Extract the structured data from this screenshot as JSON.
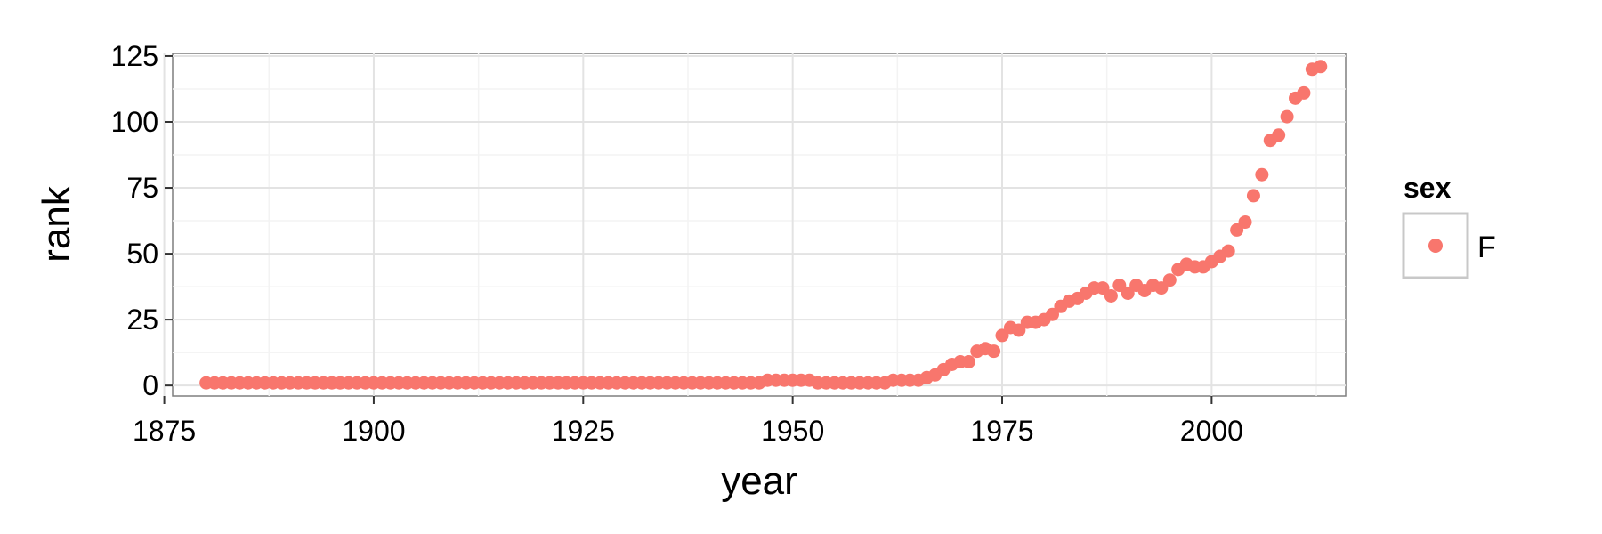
{
  "chart_data": {
    "type": "scatter",
    "xlabel": "year",
    "ylabel": "rank",
    "xlim": [
      1876,
      2016
    ],
    "ylim": [
      -4,
      126
    ],
    "x_ticks": [
      1875,
      1900,
      1925,
      1950,
      1975,
      2000
    ],
    "y_ticks": [
      0,
      25,
      50,
      75,
      100,
      125
    ],
    "x_tick_labels": [
      "1875",
      "1900",
      "1925",
      "1950",
      "1975",
      "2000"
    ],
    "y_tick_labels": [
      "0",
      "25",
      "50",
      "75",
      "100",
      "125"
    ],
    "grid": true,
    "background": "#ebebeb",
    "legend": {
      "title": "sex",
      "position": "right",
      "entries": [
        {
          "label": "F",
          "color": "#f8766d"
        }
      ]
    },
    "series": [
      {
        "name": "F",
        "color": "#f8766d",
        "points": [
          [
            1880,
            1
          ],
          [
            1881,
            1
          ],
          [
            1882,
            1
          ],
          [
            1883,
            1
          ],
          [
            1884,
            1
          ],
          [
            1885,
            1
          ],
          [
            1886,
            1
          ],
          [
            1887,
            1
          ],
          [
            1888,
            1
          ],
          [
            1889,
            1
          ],
          [
            1890,
            1
          ],
          [
            1891,
            1
          ],
          [
            1892,
            1
          ],
          [
            1893,
            1
          ],
          [
            1894,
            1
          ],
          [
            1895,
            1
          ],
          [
            1896,
            1
          ],
          [
            1897,
            1
          ],
          [
            1898,
            1
          ],
          [
            1899,
            1
          ],
          [
            1900,
            1
          ],
          [
            1901,
            1
          ],
          [
            1902,
            1
          ],
          [
            1903,
            1
          ],
          [
            1904,
            1
          ],
          [
            1905,
            1
          ],
          [
            1906,
            1
          ],
          [
            1907,
            1
          ],
          [
            1908,
            1
          ],
          [
            1909,
            1
          ],
          [
            1910,
            1
          ],
          [
            1911,
            1
          ],
          [
            1912,
            1
          ],
          [
            1913,
            1
          ],
          [
            1914,
            1
          ],
          [
            1915,
            1
          ],
          [
            1916,
            1
          ],
          [
            1917,
            1
          ],
          [
            1918,
            1
          ],
          [
            1919,
            1
          ],
          [
            1920,
            1
          ],
          [
            1921,
            1
          ],
          [
            1922,
            1
          ],
          [
            1923,
            1
          ],
          [
            1924,
            1
          ],
          [
            1925,
            1
          ],
          [
            1926,
            1
          ],
          [
            1927,
            1
          ],
          [
            1928,
            1
          ],
          [
            1929,
            1
          ],
          [
            1930,
            1
          ],
          [
            1931,
            1
          ],
          [
            1932,
            1
          ],
          [
            1933,
            1
          ],
          [
            1934,
            1
          ],
          [
            1935,
            1
          ],
          [
            1936,
            1
          ],
          [
            1937,
            1
          ],
          [
            1938,
            1
          ],
          [
            1939,
            1
          ],
          [
            1940,
            1
          ],
          [
            1941,
            1
          ],
          [
            1942,
            1
          ],
          [
            1943,
            1
          ],
          [
            1944,
            1
          ],
          [
            1945,
            1
          ],
          [
            1946,
            1
          ],
          [
            1947,
            2
          ],
          [
            1948,
            2
          ],
          [
            1949,
            2
          ],
          [
            1950,
            2
          ],
          [
            1951,
            2
          ],
          [
            1952,
            2
          ],
          [
            1953,
            1
          ],
          [
            1954,
            1
          ],
          [
            1955,
            1
          ],
          [
            1956,
            1
          ],
          [
            1957,
            1
          ],
          [
            1958,
            1
          ],
          [
            1959,
            1
          ],
          [
            1960,
            1
          ],
          [
            1961,
            1
          ],
          [
            1962,
            2
          ],
          [
            1963,
            2
          ],
          [
            1964,
            2
          ],
          [
            1965,
            2
          ],
          [
            1966,
            3
          ],
          [
            1967,
            4
          ],
          [
            1968,
            6
          ],
          [
            1969,
            8
          ],
          [
            1970,
            9
          ],
          [
            1971,
            9
          ],
          [
            1972,
            13
          ],
          [
            1973,
            14
          ],
          [
            1974,
            13
          ],
          [
            1975,
            19
          ],
          [
            1976,
            22
          ],
          [
            1977,
            21
          ],
          [
            1978,
            24
          ],
          [
            1979,
            24
          ],
          [
            1980,
            25
          ],
          [
            1981,
            27
          ],
          [
            1982,
            30
          ],
          [
            1983,
            32
          ],
          [
            1984,
            33
          ],
          [
            1985,
            35
          ],
          [
            1986,
            37
          ],
          [
            1987,
            37
          ],
          [
            1988,
            34
          ],
          [
            1989,
            38
          ],
          [
            1990,
            35
          ],
          [
            1991,
            38
          ],
          [
            1992,
            36
          ],
          [
            1993,
            38
          ],
          [
            1994,
            37
          ],
          [
            1995,
            40
          ],
          [
            1996,
            44
          ],
          [
            1997,
            46
          ],
          [
            1998,
            45
          ],
          [
            1999,
            45
          ],
          [
            2000,
            47
          ],
          [
            2001,
            49
          ],
          [
            2002,
            51
          ],
          [
            2003,
            59
          ],
          [
            2004,
            62
          ],
          [
            2005,
            72
          ],
          [
            2006,
            80
          ],
          [
            2007,
            93
          ],
          [
            2008,
            95
          ],
          [
            2009,
            102
          ],
          [
            2010,
            109
          ],
          [
            2011,
            111
          ],
          [
            2012,
            120
          ],
          [
            2013,
            121
          ]
        ]
      }
    ]
  }
}
